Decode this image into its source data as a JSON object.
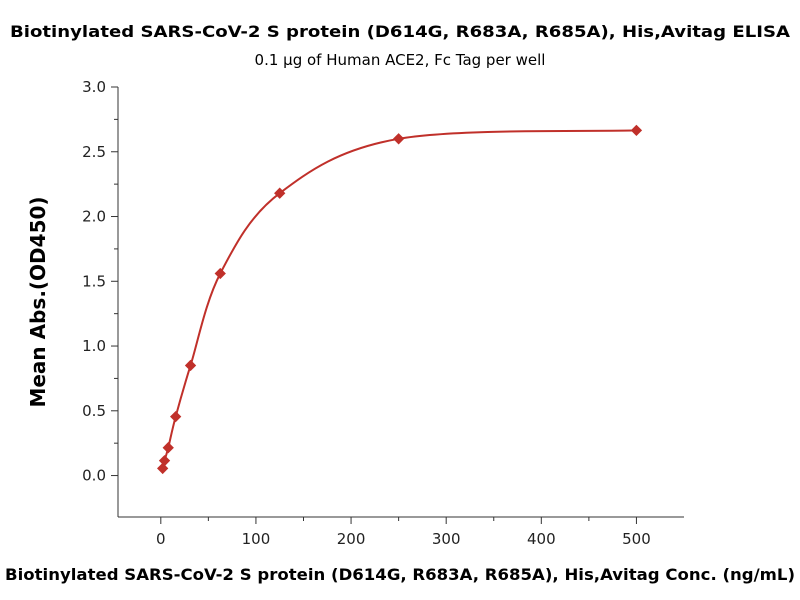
{
  "chart_data": {
    "type": "scatter",
    "title": "Biotinylated SARS-CoV-2 S protein (D614G, R683A, R685A), His,Avitag ELISA",
    "subtitle": "0.1 µg of Human ACE2, Fc Tag per well",
    "xlabel": "Biotinylated SARS-CoV-2 S protein (D614G, R683A, R685A), His,Avitag Conc. (ng/mL)",
    "ylabel": "Mean Abs.(OD450)",
    "xlim": [
      -45,
      550
    ],
    "ylim": [
      -0.32,
      3.0
    ],
    "xticks": [
      0,
      100,
      200,
      300,
      400,
      500
    ],
    "yticks": [
      "0.0",
      "0.5",
      "1.0",
      "1.5",
      "2.0",
      "2.5",
      "3.0"
    ],
    "grid": false,
    "color": "#c0302a",
    "series": [
      {
        "name": "OD450",
        "x": [
          1.953,
          3.906,
          7.813,
          15.625,
          31.25,
          62.5,
          125,
          250,
          500
        ],
        "y": [
          0.055,
          0.115,
          0.215,
          0.455,
          0.85,
          1.56,
          2.18,
          2.6,
          2.665
        ]
      }
    ]
  }
}
